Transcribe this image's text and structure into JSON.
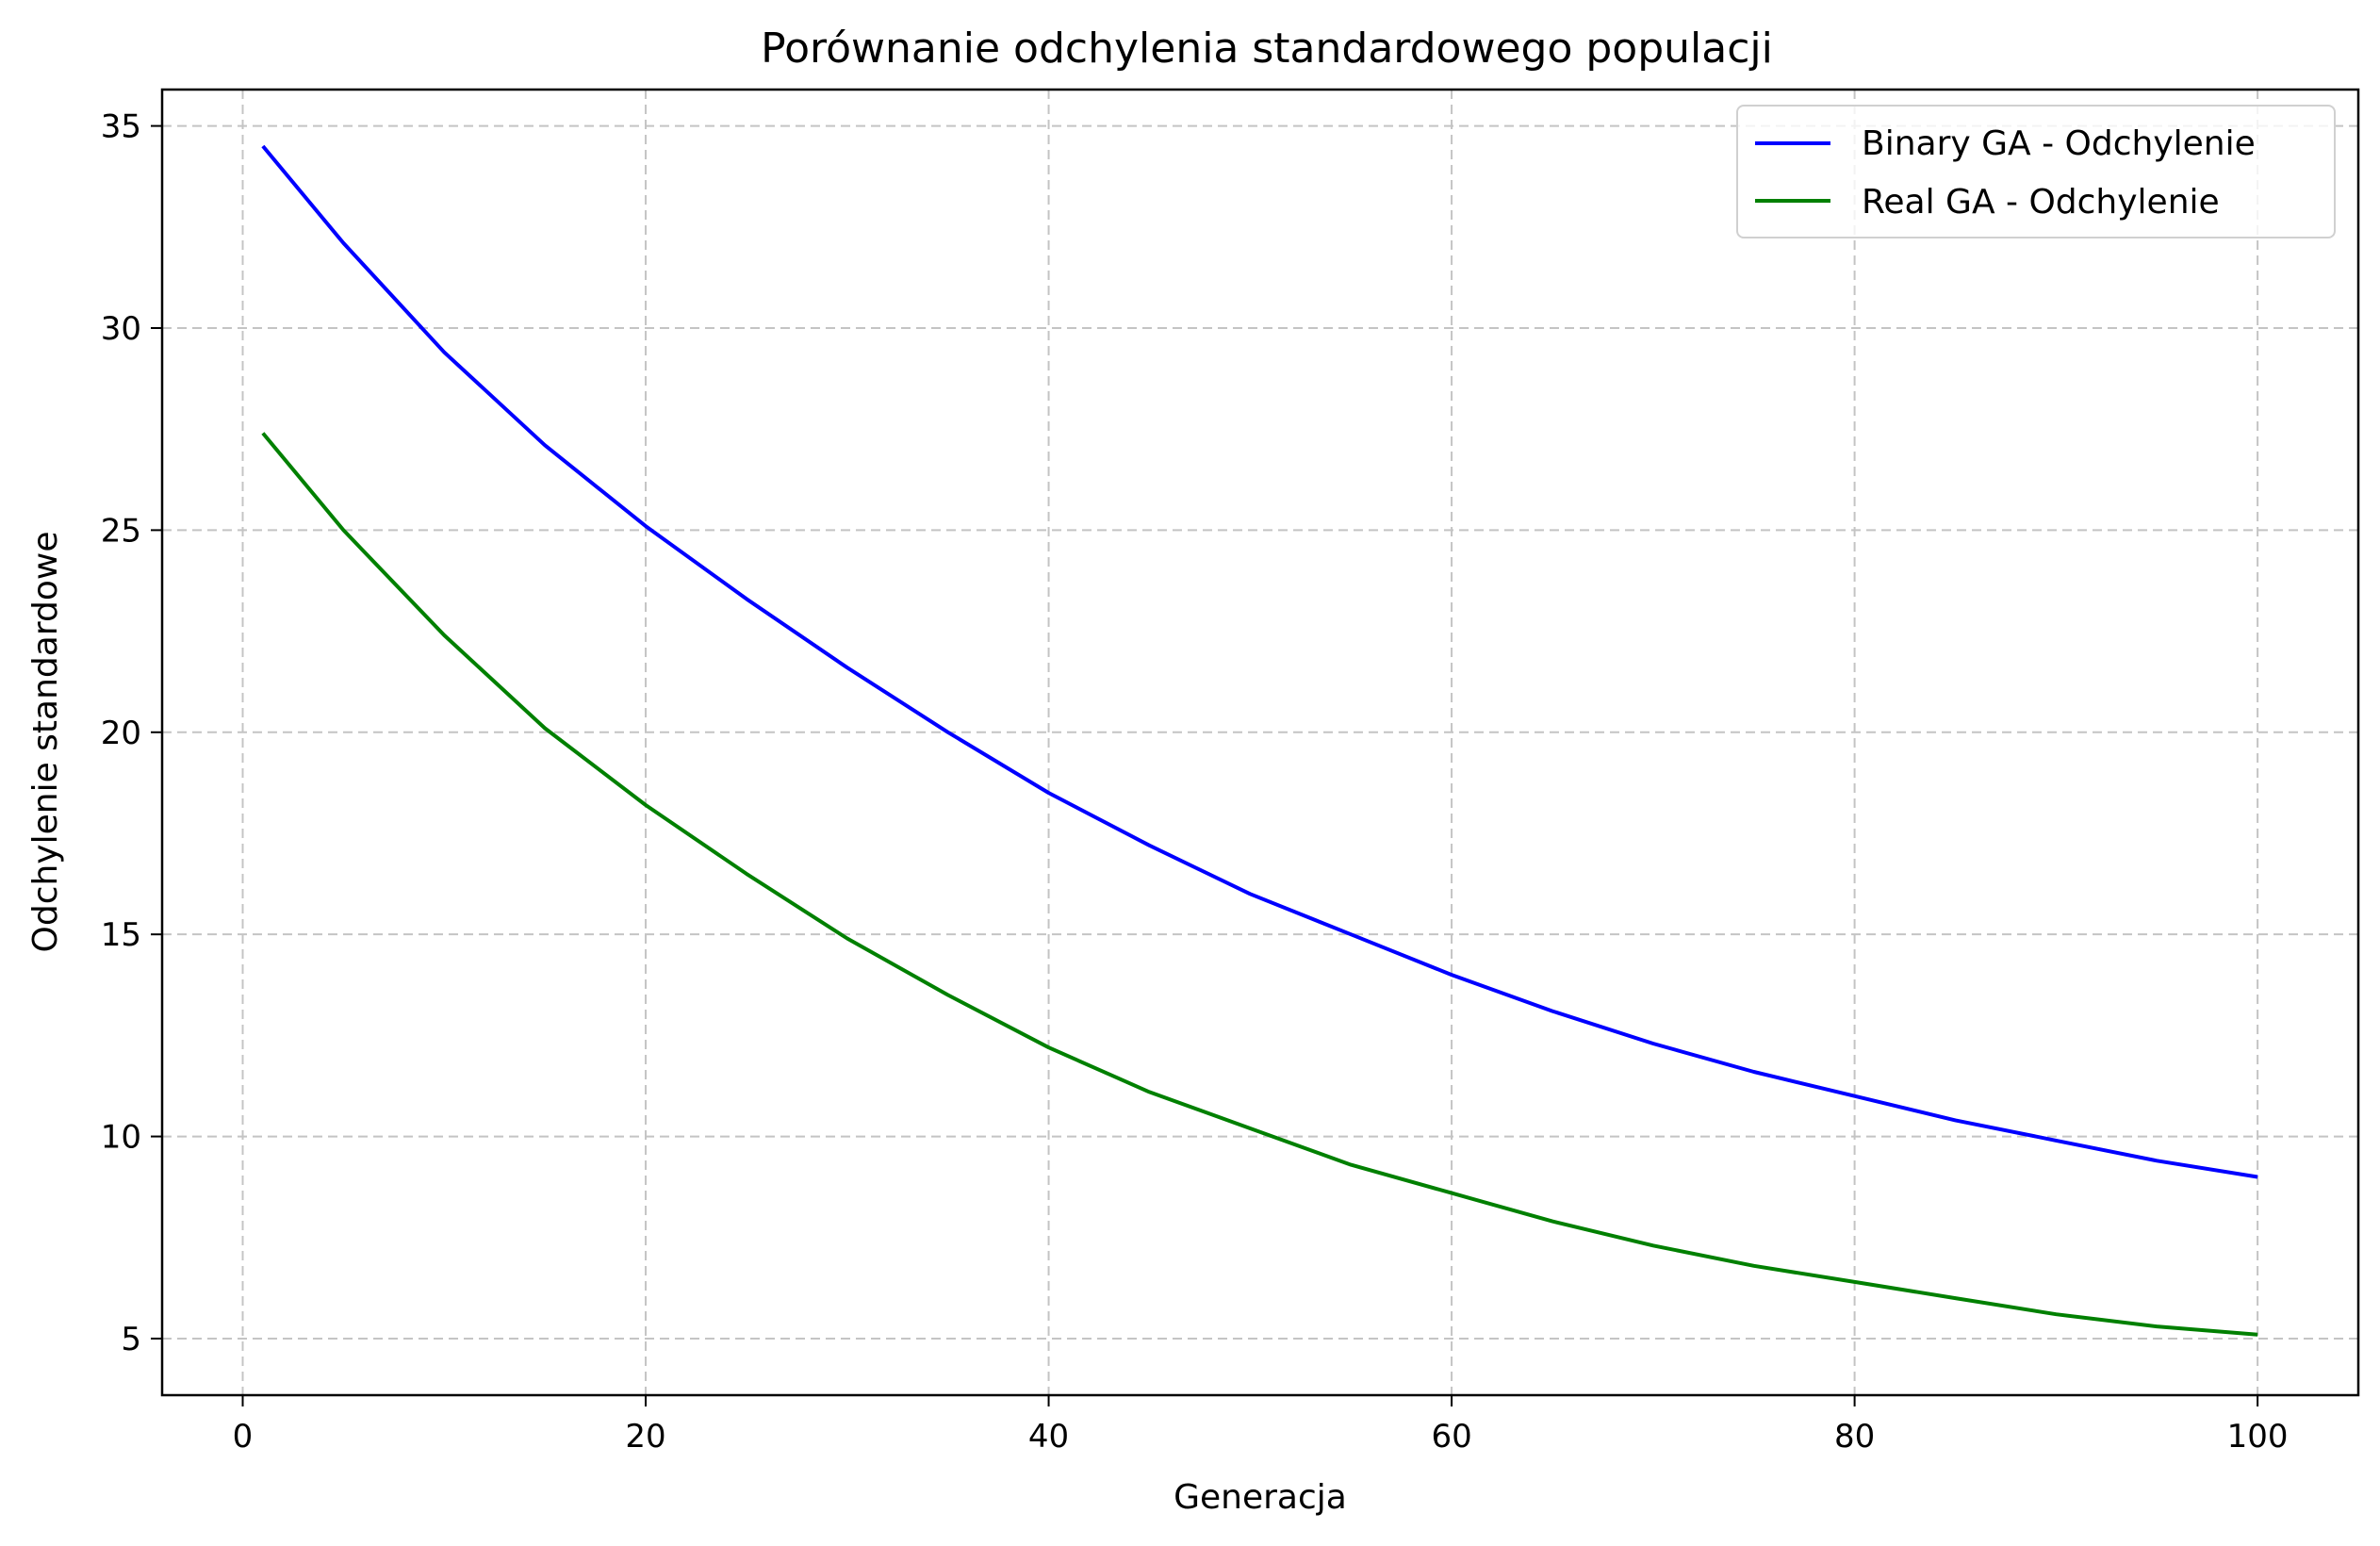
{
  "chart_data": {
    "type": "line",
    "title": "Porównanie odchylenia standardowego populacji",
    "xlabel": "Generacja",
    "ylabel": "Odchylenie standardowe",
    "xlim": [
      -4.0,
      105.0
    ],
    "ylim": [
      3.6,
      35.9
    ],
    "xticks": [
      0,
      20,
      40,
      60,
      80,
      100
    ],
    "yticks": [
      5,
      10,
      15,
      20,
      25,
      30,
      35
    ],
    "grid": true,
    "legend_position": "top-right",
    "series": [
      {
        "name": "Binary GA - Odchylenie",
        "color": "#0000ff",
        "x": [
          1,
          5,
          10,
          15,
          20,
          25,
          30,
          35,
          40,
          45,
          50,
          55,
          60,
          65,
          70,
          75,
          80,
          85,
          90,
          95,
          100
        ],
        "y": [
          34.5,
          32.1,
          29.4,
          27.1,
          25.1,
          23.3,
          21.6,
          20.0,
          18.5,
          17.2,
          16.0,
          15.0,
          14.0,
          13.1,
          12.3,
          11.6,
          11.0,
          10.4,
          9.9,
          9.4,
          9.0
        ]
      },
      {
        "name": "Real GA - Odchylenie",
        "color": "#008000",
        "x": [
          1,
          5,
          10,
          15,
          20,
          25,
          30,
          35,
          40,
          45,
          50,
          55,
          60,
          65,
          70,
          75,
          80,
          85,
          90,
          95,
          100
        ],
        "y": [
          27.4,
          25.0,
          22.4,
          20.1,
          18.2,
          16.5,
          14.9,
          13.5,
          12.2,
          11.1,
          10.2,
          9.3,
          8.6,
          7.9,
          7.3,
          6.8,
          6.4,
          6.0,
          5.6,
          5.3,
          5.1
        ]
      }
    ]
  }
}
